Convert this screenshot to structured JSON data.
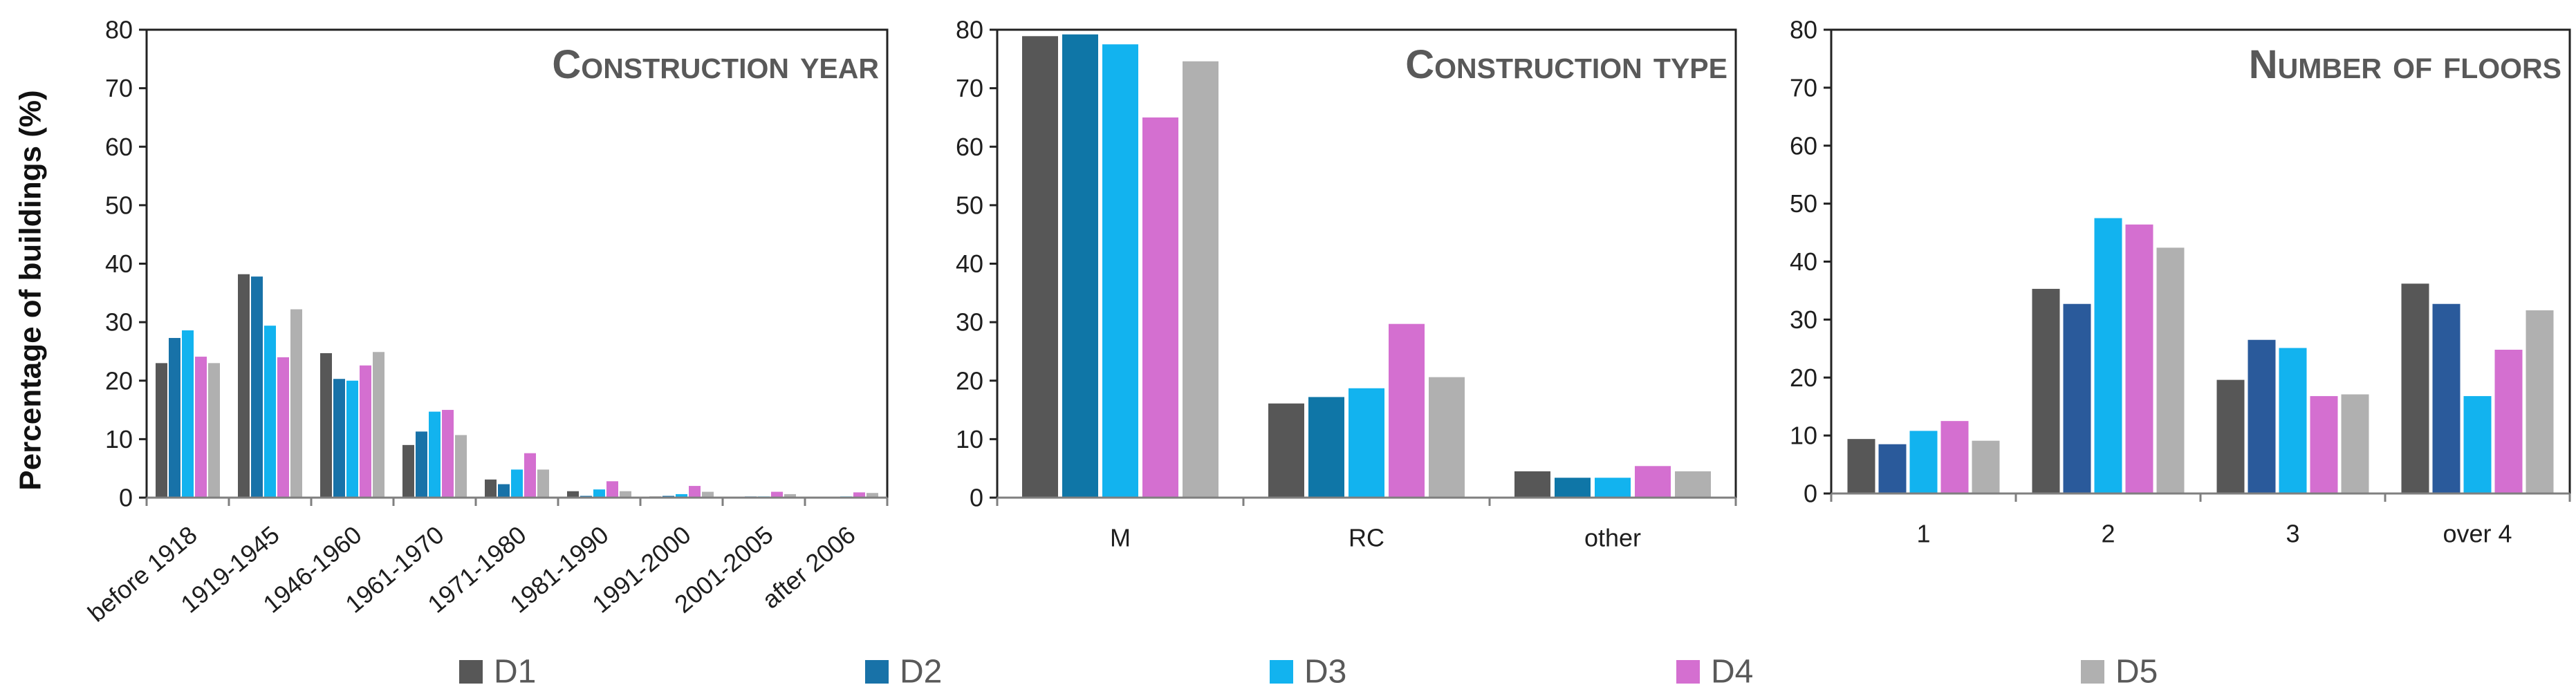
{
  "chart_data": [
    {
      "type": "bar",
      "title": "Construction year",
      "xlabel": "",
      "ylabel": "Percentage of buildings (%)",
      "ylim": [
        0,
        80
      ],
      "yticks": [
        0,
        10,
        20,
        30,
        40,
        50,
        60,
        70,
        80
      ],
      "grid": false,
      "categories": [
        "before 1918",
        "1919-1945",
        "1946-1960",
        "1961-1970",
        "1971-1980",
        "1981-1990",
        "1991-2000",
        "2001-2005",
        "after 2006"
      ],
      "series": [
        {
          "name": "D1",
          "color": "#575757",
          "values": [
            23.0,
            38.2,
            24.7,
            9.0,
            3.1,
            1.1,
            0.2,
            0.1,
            0.1
          ]
        },
        {
          "name": "D2",
          "color": "#1872a8",
          "values": [
            27.3,
            37.8,
            20.3,
            11.3,
            2.3,
            0.3,
            0.3,
            0.2,
            0.1
          ]
        },
        {
          "name": "D3",
          "color": "#12b3ef",
          "values": [
            28.6,
            29.4,
            20.0,
            14.7,
            4.8,
            1.4,
            0.6,
            0.2,
            0.2
          ]
        },
        {
          "name": "D4",
          "color": "#d46fd0",
          "values": [
            24.1,
            24.0,
            22.6,
            15.0,
            7.6,
            2.8,
            2.0,
            1.0,
            0.9
          ]
        },
        {
          "name": "D5",
          "color": "#b0b0b0",
          "values": [
            23.0,
            32.2,
            24.9,
            10.7,
            4.8,
            1.1,
            1.0,
            0.6,
            0.8
          ]
        }
      ]
    },
    {
      "type": "bar",
      "title": "Construction type",
      "xlabel": "",
      "ylabel": "",
      "ylim": [
        0,
        80
      ],
      "yticks": [
        0,
        10,
        20,
        30,
        40,
        50,
        60,
        70,
        80
      ],
      "grid": false,
      "categories": [
        "M",
        "RC",
        "other"
      ],
      "series": [
        {
          "name": "D1",
          "color": "#575757",
          "values": [
            78.9,
            16.1,
            4.5
          ]
        },
        {
          "name": "D2",
          "color": "#0f76a7",
          "values": [
            79.2,
            17.2,
            3.4
          ]
        },
        {
          "name": "D3",
          "color": "#12b3ef",
          "values": [
            77.5,
            18.7,
            3.4
          ]
        },
        {
          "name": "D4",
          "color": "#d46fd0",
          "values": [
            65.0,
            29.7,
            5.4
          ]
        },
        {
          "name": "D5",
          "color": "#b0b0b0",
          "values": [
            74.6,
            20.6,
            4.5
          ]
        }
      ]
    },
    {
      "type": "bar",
      "title": "Number of floors",
      "xlabel": "",
      "ylabel": "",
      "ylim": [
        0,
        80
      ],
      "yticks": [
        0,
        10,
        20,
        30,
        40,
        50,
        60,
        70,
        80
      ],
      "grid": false,
      "categories": [
        "1",
        "2",
        "3",
        "over 4"
      ],
      "series": [
        {
          "name": "D1",
          "color": "#575757",
          "values": [
            9.4,
            35.3,
            19.6,
            36.2
          ]
        },
        {
          "name": "D2",
          "color": "#2a5a9b",
          "values": [
            8.5,
            32.7,
            26.5,
            32.7
          ]
        },
        {
          "name": "D3",
          "color": "#12b3ef",
          "values": [
            10.8,
            47.5,
            25.1,
            16.8
          ]
        },
        {
          "name": "D4",
          "color": "#d46fd0",
          "values": [
            12.5,
            46.4,
            16.8,
            24.8
          ]
        },
        {
          "name": "D5",
          "color": "#b0b0b0",
          "values": [
            9.1,
            42.4,
            17.1,
            31.6
          ]
        }
      ]
    }
  ],
  "legend": {
    "position": "bottom",
    "items": [
      {
        "label": "D1",
        "color": "#575757"
      },
      {
        "label": "D2",
        "color": "#1872a8"
      },
      {
        "label": "D3",
        "color": "#12b3ef"
      },
      {
        "label": "D4",
        "color": "#d46fd0"
      },
      {
        "label": "D5",
        "color": "#b0b0b0"
      }
    ]
  }
}
